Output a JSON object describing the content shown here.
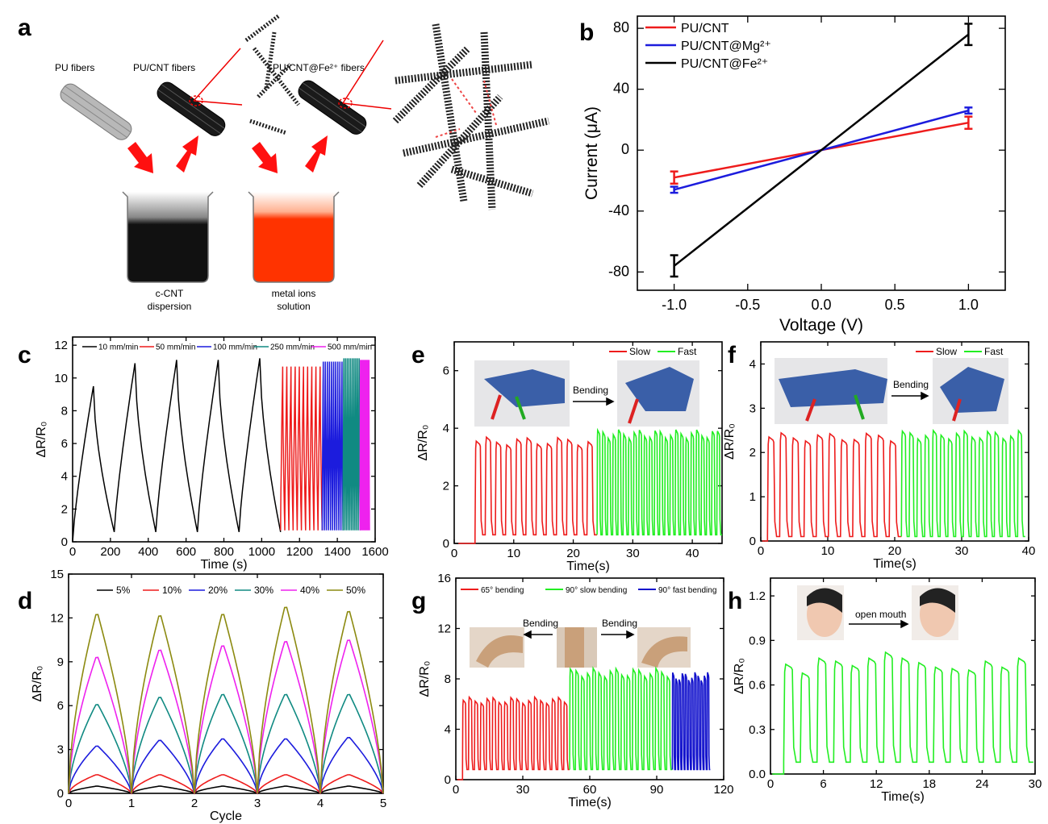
{
  "panel_letters": [
    "a",
    "b",
    "c",
    "d",
    "e",
    "f",
    "g",
    "h"
  ],
  "illustration_a": {
    "fiber_labels": [
      "PU fibers",
      "PU/CNT fibers",
      "PU/CNT@Fe²⁺ fibers"
    ],
    "beaker_labels": [
      [
        "c-CNT",
        "dispersion"
      ],
      [
        "metal ions",
        "solution"
      ]
    ]
  },
  "photo_captions": {
    "e": "Bending",
    "f": "Bending",
    "g": [
      "Bending",
      "Bending"
    ],
    "h": "open mouth"
  },
  "colors": {
    "red": "#ee1c1c",
    "blue": "#1c1cdd",
    "black": "#000000",
    "teal": "#108a82",
    "magenta": "#ee22ee",
    "olive": "#8c8a10",
    "green": "#22ee22",
    "dark_blue": "#1010cc"
  },
  "chart_data": [
    {
      "id": "b",
      "type": "line",
      "xlabel": "Voltage (V)",
      "ylabel": "Current (μA)",
      "xlim": [
        -1.25,
        1.25
      ],
      "ylim": [
        -92,
        88
      ],
      "xticks": [
        "-1.0",
        "-0.5",
        "0.0",
        "0.5",
        "1.0"
      ],
      "yticks": [
        "-80",
        "-40",
        "0",
        "40",
        "80"
      ],
      "legend_position": "top-left",
      "series": [
        {
          "name": "PU/CNT",
          "color": "#ee1c1c",
          "x": [
            -1,
            0,
            1
          ],
          "y": [
            -18,
            0,
            18
          ],
          "err": [
            4,
            0,
            4
          ]
        },
        {
          "name": "PU/CNT@Mg²⁺",
          "color": "#1c1cdd",
          "x": [
            -1,
            0,
            1
          ],
          "y": [
            -26,
            0,
            26
          ],
          "err": [
            2,
            0,
            2
          ]
        },
        {
          "name": "PU/CNT@Fe²⁺",
          "color": "#000000",
          "x": [
            -1,
            0,
            1
          ],
          "y": [
            -76,
            0,
            76
          ],
          "err": [
            7,
            0,
            7
          ]
        }
      ]
    },
    {
      "id": "c",
      "type": "line",
      "xlabel": "Time (s)",
      "ylabel": "ΔR/R₀",
      "xlim": [
        0,
        1600
      ],
      "ylim": [
        0,
        12.5
      ],
      "xticks": [
        "0",
        "200",
        "400",
        "600",
        "800",
        "1000",
        "1200",
        "1400",
        "1600"
      ],
      "yticks": [
        "0",
        "2",
        "4",
        "6",
        "8",
        "10",
        "12"
      ],
      "legend_position": "top",
      "series": [
        {
          "name": "10 mm/min",
          "color": "#000000",
          "t_start": 0,
          "t_end": 1100,
          "cycles": 5,
          "peaks": [
            9.5,
            10.9,
            11.1,
            11.1,
            11.2
          ],
          "baseline": 0.6,
          "shape": "sharp"
        },
        {
          "name": "50 mm/min",
          "color": "#ee1c1c",
          "t_start": 1100,
          "t_end": 1320,
          "cycles": 10,
          "peaks": [
            10.7
          ],
          "baseline": 0.7,
          "shape": "sharp"
        },
        {
          "name": "100 mm/min",
          "color": "#1c1cdd",
          "t_start": 1320,
          "t_end": 1430,
          "cycles": 10,
          "peaks": [
            11.0
          ],
          "baseline": 0.7,
          "shape": "sharp"
        },
        {
          "name": "250 mm/min",
          "color": "#108a82",
          "t_start": 1430,
          "t_end": 1520,
          "cycles": 10,
          "peaks": [
            11.2
          ],
          "baseline": 0.7,
          "shape": "sharp"
        },
        {
          "name": "500 mm/min",
          "color": "#ee22ee",
          "t_start": 1520,
          "t_end": 1570,
          "cycles": 10,
          "peaks": [
            11.1
          ],
          "baseline": 0.7,
          "shape": "sharp"
        }
      ]
    },
    {
      "id": "d",
      "type": "line",
      "xlabel": "Cycle",
      "ylabel": "ΔR/R₀",
      "xlim": [
        0,
        5
      ],
      "ylim": [
        0,
        15
      ],
      "xticks": [
        "0",
        "1",
        "2",
        "3",
        "4",
        "5"
      ],
      "yticks": [
        "0",
        "3",
        "6",
        "9",
        "12",
        "15"
      ],
      "legend_position": "top",
      "series": [
        {
          "name": "5%",
          "color": "#000000",
          "peaks": [
            0.5,
            0.5,
            0.5,
            0.5,
            0.5
          ]
        },
        {
          "name": "10%",
          "color": "#ee1c1c",
          "peaks": [
            1.3,
            1.3,
            1.3,
            1.3,
            1.3
          ]
        },
        {
          "name": "20%",
          "color": "#1c1cdd",
          "peaks": [
            3.3,
            3.7,
            3.8,
            3.8,
            3.9
          ]
        },
        {
          "name": "30%",
          "color": "#108a82",
          "peaks": [
            6.2,
            6.7,
            6.9,
            6.9,
            6.9
          ]
        },
        {
          "name": "40%",
          "color": "#ee22ee",
          "peaks": [
            9.5,
            10.0,
            10.3,
            10.6,
            10.7
          ]
        },
        {
          "name": "50%",
          "color": "#8c8a10",
          "peaks": [
            12.5,
            12.4,
            12.5,
            13.0,
            12.7
          ]
        }
      ]
    },
    {
      "id": "e",
      "type": "line",
      "xlabel": "Time(s)",
      "ylabel": "ΔR/R₀",
      "xlim": [
        0,
        45
      ],
      "ylim": [
        0,
        7
      ],
      "xticks": [
        "0",
        "10",
        "20",
        "30",
        "40"
      ],
      "yticks": [
        "0",
        "2",
        "4",
        "6"
      ],
      "legend_position": "top-right",
      "series": [
        {
          "name": "Slow",
          "color": "#ee1c1c",
          "t_start": 3.5,
          "t_end": 24,
          "cycles": 12,
          "peak": 3.55,
          "baseline": 0.3
        },
        {
          "name": "Fast",
          "color": "#22ee22",
          "t_start": 24,
          "t_end": 45,
          "cycles": 24,
          "peak": 3.8,
          "baseline": 0.3
        }
      ]
    },
    {
      "id": "f",
      "type": "line",
      "xlabel": "Time(s)",
      "ylabel": "ΔR/R₀",
      "xlim": [
        0,
        40
      ],
      "ylim": [
        0,
        4.5
      ],
      "xticks": [
        "0",
        "10",
        "20",
        "30",
        "40"
      ],
      "yticks": [
        "0",
        "1",
        "2",
        "3",
        "4"
      ],
      "legend_position": "top-right",
      "series": [
        {
          "name": "Slow",
          "color": "#ee1c1c",
          "t_start": 1,
          "t_end": 21,
          "cycles": 11,
          "peak": 2.35,
          "baseline": 0.1
        },
        {
          "name": "Fast",
          "color": "#22ee22",
          "t_start": 21,
          "t_end": 39.5,
          "cycles": 16,
          "peak": 2.4,
          "baseline": 0.1
        }
      ]
    },
    {
      "id": "g",
      "type": "line",
      "xlabel": "Time(s)",
      "ylabel": "ΔR/R₀",
      "xlim": [
        0,
        120
      ],
      "ylim": [
        0,
        16
      ],
      "xticks": [
        "0",
        "30",
        "60",
        "90",
        "120"
      ],
      "yticks": [
        "0",
        "4",
        "8",
        "12",
        "16"
      ],
      "legend_position": "top",
      "series": [
        {
          "name": "65° bending",
          "color": "#ee1c1c",
          "t_start": 3,
          "t_end": 51,
          "cycles": 18,
          "peak": 6.3,
          "baseline": 0.8
        },
        {
          "name": "90° slow bending",
          "color": "#22ee22",
          "t_start": 51,
          "t_end": 97,
          "cycles": 18,
          "peak": 8.5,
          "baseline": 0.8
        },
        {
          "name": "90° fast bending",
          "color": "#1010cc",
          "t_start": 97,
          "t_end": 114,
          "cycles": 12,
          "peak": 8.2,
          "baseline": 0.8
        }
      ]
    },
    {
      "id": "h",
      "type": "line",
      "xlabel": "Time(s)",
      "ylabel": "ΔR/R₀",
      "xlim": [
        0,
        30
      ],
      "ylim": [
        0,
        1.32
      ],
      "xticks": [
        "0",
        "6",
        "12",
        "18",
        "24",
        "30"
      ],
      "yticks": [
        "0.0",
        "0.3",
        "0.6",
        "0.9",
        "1.2"
      ],
      "series": [
        {
          "color": "#22ee22",
          "t_start": 1.5,
          "t_end": 29.8,
          "peaks": [
            0.74,
            0.68,
            0.78,
            0.76,
            0.73,
            0.78,
            0.82,
            0.78,
            0.75,
            0.72,
            0.71,
            0.7,
            0.76,
            0.72,
            0.78
          ],
          "baseline": 0.08
        }
      ]
    }
  ]
}
